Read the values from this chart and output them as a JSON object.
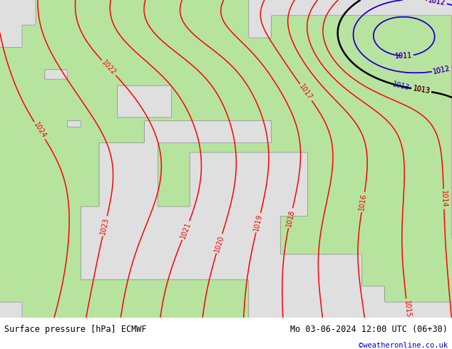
{
  "title_left": "Surface pressure [hPa] ECMWF",
  "title_right": "Mo 03-06-2024 12:00 UTC (06+30)",
  "credit": "©weatheronline.co.uk",
  "land_color_rgba": [
    0.714,
    0.898,
    0.627,
    1.0
  ],
  "sea_color": "#e0e0e0",
  "contour_color_red": "#ff0000",
  "contour_color_blue": "#0000ff",
  "contour_color_black": "#000000",
  "coast_color": "#888888",
  "bottom_bar_color": "#d8d8d8",
  "figsize": [
    6.34,
    4.9
  ],
  "dpi": 100
}
